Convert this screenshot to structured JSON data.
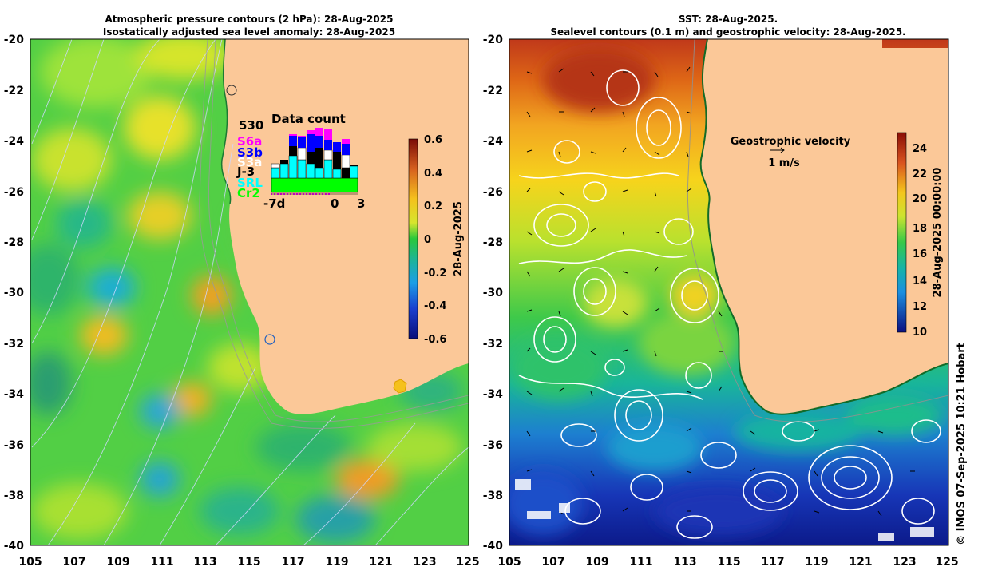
{
  "left_panel": {
    "title_line1": "Atmospheric pressure contours (2 hPa): 28-Aug-2025",
    "title_line2": "Isostatically adjusted sea level anomaly: 28-Aug-2025",
    "lat_ticks": [
      "-20",
      "-22",
      "-24",
      "-26",
      "-28",
      "-30",
      "-32",
      "-34",
      "-36",
      "-38",
      "-40"
    ],
    "lon_ticks": [
      "105",
      "107",
      "109",
      "111",
      "113",
      "115",
      "117",
      "119",
      "121",
      "123",
      "125"
    ],
    "colorbar": {
      "ticks": [
        "0.6",
        "0.4",
        "0.2",
        "0",
        "-0.2",
        "-0.4",
        "-0.6"
      ],
      "label": "28-Aug-2025"
    },
    "data_count": {
      "title": "Data count",
      "count": "530",
      "missions": [
        {
          "label": "S6a",
          "color": "#ff00ff"
        },
        {
          "label": "S3b",
          "color": "#0000ff"
        },
        {
          "label": "S3a",
          "color": "#ffffff"
        },
        {
          "label": "J-3",
          "color": "#000000"
        },
        {
          "label": "SRL",
          "color": "#00ffff"
        },
        {
          "label": "Cr2",
          "color": "#00ff00"
        }
      ],
      "axis_labels": [
        "-7d",
        "0",
        "3"
      ]
    }
  },
  "right_panel": {
    "title_line1": "SST: 28-Aug-2025.",
    "title_line2": "Sealevel contours (0.1 m) and geostrophic velocity: 28-Aug-2025.",
    "lat_ticks": [
      "-20",
      "-22",
      "-24",
      "-26",
      "-28",
      "-30",
      "-32",
      "-34",
      "-36",
      "-38",
      "-40"
    ],
    "lon_ticks": [
      "105",
      "107",
      "109",
      "111",
      "113",
      "115",
      "117",
      "119",
      "121",
      "123",
      "125"
    ],
    "velocity_legend": {
      "title": "Geostrophic velocity",
      "scale": "1 m/s"
    },
    "colorbar": {
      "ticks": [
        "24",
        "22",
        "20",
        "18",
        "16",
        "14",
        "12",
        "10"
      ],
      "label": "28-Aug-2025 00:00:00"
    }
  },
  "credit": "© IMOS 07-Sep-2025 10:21 Hobart"
}
